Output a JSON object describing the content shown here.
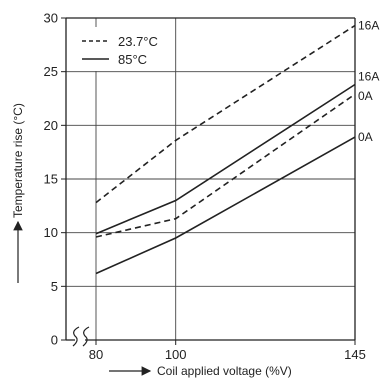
{
  "chart_data": {
    "type": "line",
    "xlabel": "Coil applied voltage (%V)",
    "ylabel": "Temperature rise (°C)",
    "xlim": [
      80,
      145
    ],
    "ylim": [
      0,
      30
    ],
    "x_ticks": [
      80,
      100,
      145
    ],
    "x_tick_labels": [
      "80",
      "100",
      "145"
    ],
    "y_ticks": [
      0,
      5,
      10,
      15,
      20,
      25,
      30
    ],
    "y_tick_labels": [
      "0",
      "5",
      "10",
      "15",
      "20",
      "25",
      "30"
    ],
    "axis_break": "x",
    "grid": true,
    "legend_position": "top-left",
    "legend": [
      {
        "label": "23.7°C",
        "style": "dashed"
      },
      {
        "label": "85°C",
        "style": "solid"
      }
    ],
    "series": [
      {
        "group": "23.7°C",
        "label": "16A",
        "style": "dashed",
        "x": [
          80,
          100,
          145
        ],
        "y": [
          12.8,
          18.6,
          29.3
        ]
      },
      {
        "group": "23.7°C",
        "label": "0A",
        "style": "dashed",
        "x": [
          80,
          100,
          145
        ],
        "y": [
          9.6,
          11.3,
          22.9
        ]
      },
      {
        "group": "85°C",
        "label": "16A",
        "style": "solid",
        "x": [
          80,
          100,
          145
        ],
        "y": [
          9.9,
          13.0,
          23.8
        ]
      },
      {
        "group": "85°C",
        "label": "0A",
        "style": "solid",
        "x": [
          80,
          100,
          145
        ],
        "y": [
          6.2,
          9.5,
          18.9
        ]
      }
    ]
  }
}
